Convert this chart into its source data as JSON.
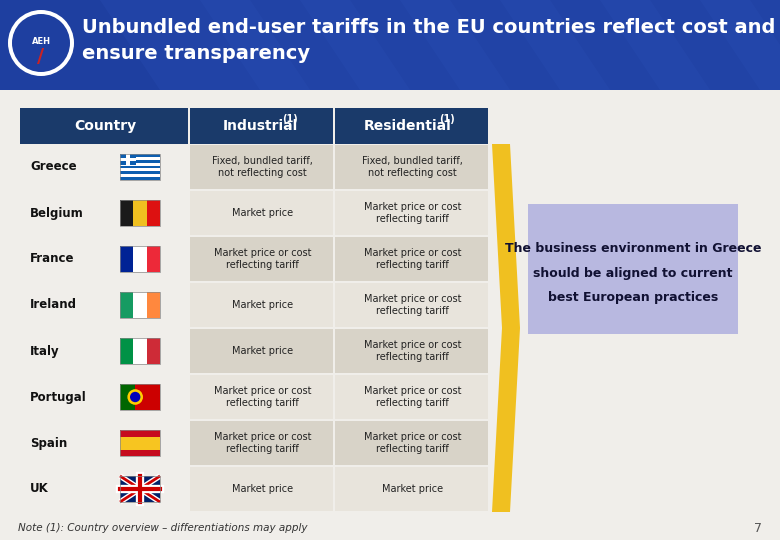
{
  "title_line1": "Unbundled end-user tariffs in the EU countries reflect cost and",
  "title_line2": "ensure transparency",
  "header_bg": "#1a3a7a",
  "header_text_color": "#ffffff",
  "row_bg_alt1": "#d8d3c8",
  "row_bg_alt2": "#e8e4dc",
  "col_headers": [
    "Country",
    "Industrial(1)",
    "Residential(1)"
  ],
  "countries": [
    "Greece",
    "Belgium",
    "France",
    "Ireland",
    "Italy",
    "Portugal",
    "Spain",
    "UK"
  ],
  "industrial": [
    "Fixed, bundled tariff,\nnot reflecting cost",
    "Market price",
    "Market price or cost\nreflecting tariff",
    "Market price",
    "Market price",
    "Market price or cost\nreflecting tariff",
    "Market price or cost\nreflecting tariff",
    "Market price"
  ],
  "residential": [
    "Fixed, bundled tariff,\nnot reflecting cost",
    "Market price or cost\nreflecting tariff",
    "Market price or cost\nreflecting tariff",
    "Market price or cost\nreflecting tariff",
    "Market price or cost\nreflecting tariff",
    "Market price or cost\nreflecting tariff",
    "Market price or cost\nreflecting tariff",
    "Market price"
  ],
  "callout_line1": "The business environment in Greece",
  "callout_line2": "should be aligned to current",
  "callout_line3": "best European practices",
  "callout_bg": "#b8b8e0",
  "arrow_color": "#f0c020",
  "note_text": "Note (1): Country overview – differentiations may apply",
  "page_number": "7",
  "bg_color": "#f0eeea",
  "title_bg": "#1e3fa0",
  "table_header_bg": "#1a3a6a"
}
